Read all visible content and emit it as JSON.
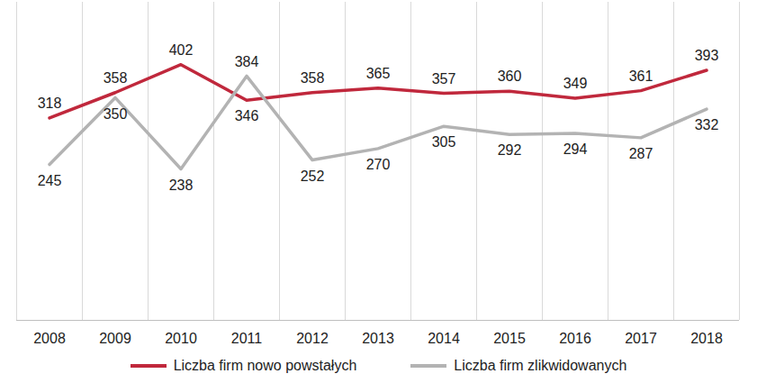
{
  "chart_data": {
    "type": "line",
    "categories": [
      "2008",
      "2009",
      "2010",
      "2011",
      "2012",
      "2013",
      "2014",
      "2015",
      "2016",
      "2017",
      "2018"
    ],
    "series": [
      {
        "name": "Liczba firm nowo powstałych",
        "color": "#c0283c",
        "values": [
          318,
          358,
          402,
          346,
          358,
          365,
          357,
          360,
          349,
          361,
          393
        ]
      },
      {
        "name": "Liczba firm zlikwidowanych",
        "color": "#b3b3b3",
        "values": [
          245,
          350,
          238,
          384,
          252,
          270,
          305,
          292,
          294,
          287,
          332
        ]
      }
    ],
    "ylim": [
      0,
      500
    ],
    "yticks": [],
    "grid": true,
    "data_labels": true,
    "tick_labels": "x",
    "legend": "bottom"
  }
}
